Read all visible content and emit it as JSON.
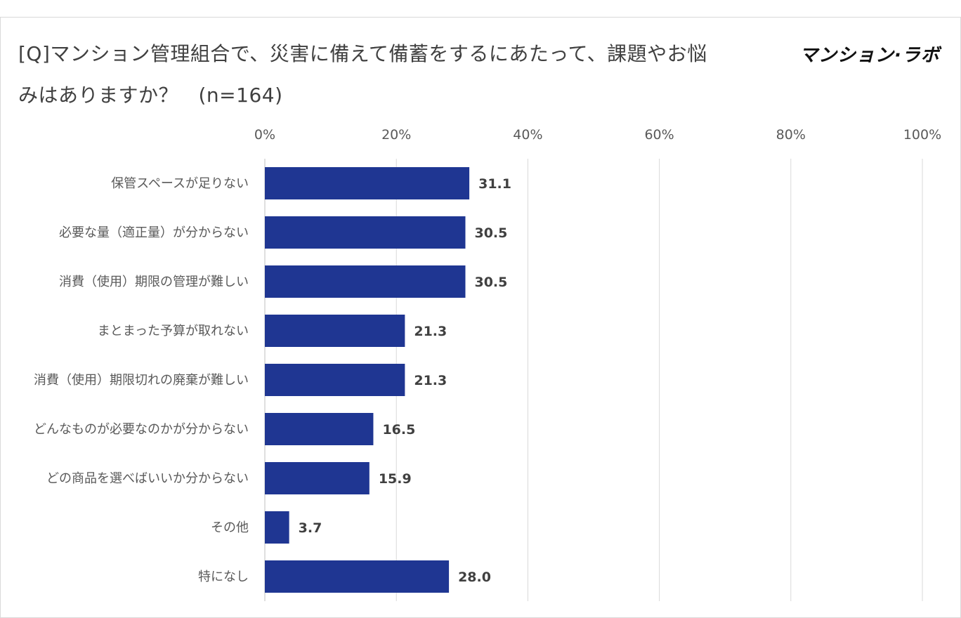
{
  "title": {
    "line1": "[Q]マンション管理組合で、災害に備えて備蓄をするにあたって、課題やお悩",
    "line2": "みはありますか？　(n=164)"
  },
  "logo": {
    "text": "マンション·ラボ"
  },
  "chart_data": {
    "type": "bar",
    "orientation": "horizontal",
    "title": "[Q]マンション管理組合で、災害に備えて備蓄をするにあたって、課題やお悩みはありますか？　(n=164)",
    "categories": [
      "保管スペースが足りない",
      "必要な量（適正量）が分からない",
      "消費（使用）期限の管理が難しい",
      "まとまった予算が取れない",
      "消費（使用）期限切れの廃棄が難しい",
      "どんなものが必要なのかが分からない",
      "どの商品を選べばいいか分からない",
      "その他",
      "特になし"
    ],
    "values": [
      31.1,
      30.5,
      30.5,
      21.3,
      21.3,
      16.5,
      15.9,
      3.7,
      28.0
    ],
    "value_labels": [
      "31.1",
      "30.5",
      "30.5",
      "21.3",
      "21.3",
      "16.5",
      "15.9",
      "3.7",
      "28.0"
    ],
    "xlim": [
      0,
      100
    ],
    "xticks": [
      "0%",
      "20%",
      "40%",
      "60%",
      "80%",
      "100%"
    ],
    "xtick_values": [
      0,
      20,
      40,
      60,
      80,
      100
    ],
    "grid": true,
    "axis_position": "top",
    "bar_color": "#1f3692",
    "grid_color": "#d9d9d9"
  }
}
